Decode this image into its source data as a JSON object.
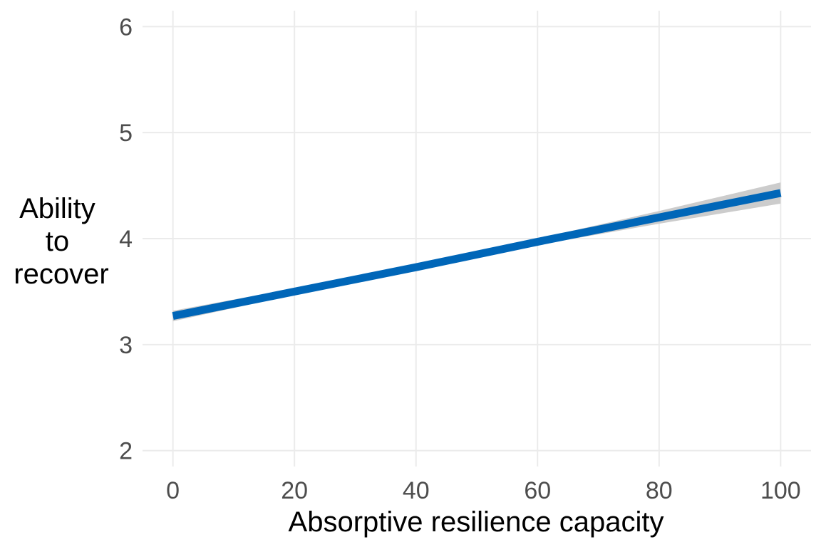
{
  "chart_data": {
    "type": "line",
    "title": "",
    "xlabel": "Absorptive resilience capacity",
    "ylabel_lines": [
      "Ability",
      "to",
      "recover"
    ],
    "xlim": [
      -5,
      105
    ],
    "ylim": [
      1.85,
      6.15
    ],
    "x_ticks": [
      0,
      20,
      40,
      60,
      80,
      100
    ],
    "x_tick_labels": [
      "0",
      "20",
      "40",
      "60",
      "80",
      "100"
    ],
    "y_ticks": [
      2,
      3,
      4,
      5,
      6
    ],
    "y_tick_labels": [
      "2",
      "3",
      "4",
      "5",
      "6"
    ],
    "grid": true,
    "legend": "none",
    "series": [
      {
        "x": [
          0,
          20,
          40,
          60,
          80,
          100
        ],
        "y": [
          3.27,
          3.5,
          3.73,
          3.97,
          4.2,
          4.43
        ],
        "ci_lower": [
          3.22,
          3.47,
          3.71,
          3.94,
          4.14,
          4.33
        ],
        "ci_upper": [
          3.32,
          3.53,
          3.76,
          4.0,
          4.26,
          4.53
        ],
        "color": "#0066b8",
        "band_color": "#cccccc"
      }
    ]
  }
}
